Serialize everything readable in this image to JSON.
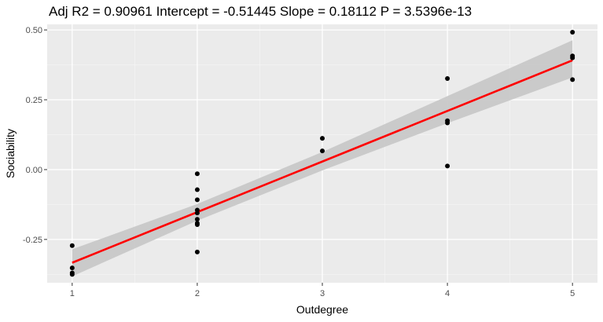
{
  "chart_data": {
    "type": "scatter",
    "title": "Adj R2 =  0.90961 Intercept = -0.51445  Slope = 0.18112  P = 3.5396e-13",
    "xlabel": "Outdegree",
    "ylabel": "Sociability",
    "xlim": [
      0.8,
      5.2
    ],
    "ylim": [
      -0.405,
      0.52
    ],
    "x_ticks": [
      1,
      2,
      3,
      4,
      5
    ],
    "x_tick_labels": [
      "1",
      "2",
      "3",
      "4",
      "5"
    ],
    "x_minor_ticks": [
      1.5,
      2.5,
      3.5,
      4.5
    ],
    "y_ticks": [
      -0.25,
      0.0,
      0.25,
      0.5
    ],
    "y_tick_labels": [
      "-0.25",
      "0.00",
      "0.25",
      "0.50"
    ],
    "y_minor_ticks": [
      -0.375,
      -0.125,
      0.125,
      0.375
    ],
    "grid": true,
    "points": [
      {
        "x": 1,
        "y": -0.272
      },
      {
        "x": 1,
        "y": -0.352
      },
      {
        "x": 1,
        "y": -0.37
      },
      {
        "x": 1,
        "y": -0.375
      },
      {
        "x": 2,
        "y": -0.015
      },
      {
        "x": 2,
        "y": -0.072
      },
      {
        "x": 2,
        "y": -0.108
      },
      {
        "x": 2,
        "y": -0.145
      },
      {
        "x": 2,
        "y": -0.155
      },
      {
        "x": 2,
        "y": -0.178
      },
      {
        "x": 2,
        "y": -0.192
      },
      {
        "x": 2,
        "y": -0.197
      },
      {
        "x": 2,
        "y": -0.295
      },
      {
        "x": 3,
        "y": 0.112
      },
      {
        "x": 3,
        "y": 0.067
      },
      {
        "x": 4,
        "y": 0.326
      },
      {
        "x": 4,
        "y": 0.175
      },
      {
        "x": 4,
        "y": 0.167
      },
      {
        "x": 4,
        "y": 0.013
      },
      {
        "x": 5,
        "y": 0.492
      },
      {
        "x": 5,
        "y": 0.407
      },
      {
        "x": 5,
        "y": 0.4
      },
      {
        "x": 5,
        "y": 0.322
      }
    ],
    "regression": {
      "intercept": -0.51445,
      "slope": 0.18112,
      "x_range": [
        1,
        5
      ],
      "confidence_band": [
        {
          "x": 1,
          "lower": -0.382,
          "upper": -0.285
        },
        {
          "x": 2,
          "lower": -0.183,
          "upper": -0.123
        },
        {
          "x": 3,
          "lower": -0.003,
          "upper": 0.063
        },
        {
          "x": 4,
          "lower": 0.166,
          "upper": 0.263
        },
        {
          "x": 5,
          "lower": 0.33,
          "upper": 0.463
        }
      ]
    },
    "colors": {
      "panel_background": "#ebebeb",
      "grid_major": "#ffffff",
      "grid_minor": "#f5f5f5",
      "points": "#000000",
      "regression_line": "#ff0000",
      "confidence_band": "#c8c8c8"
    }
  }
}
